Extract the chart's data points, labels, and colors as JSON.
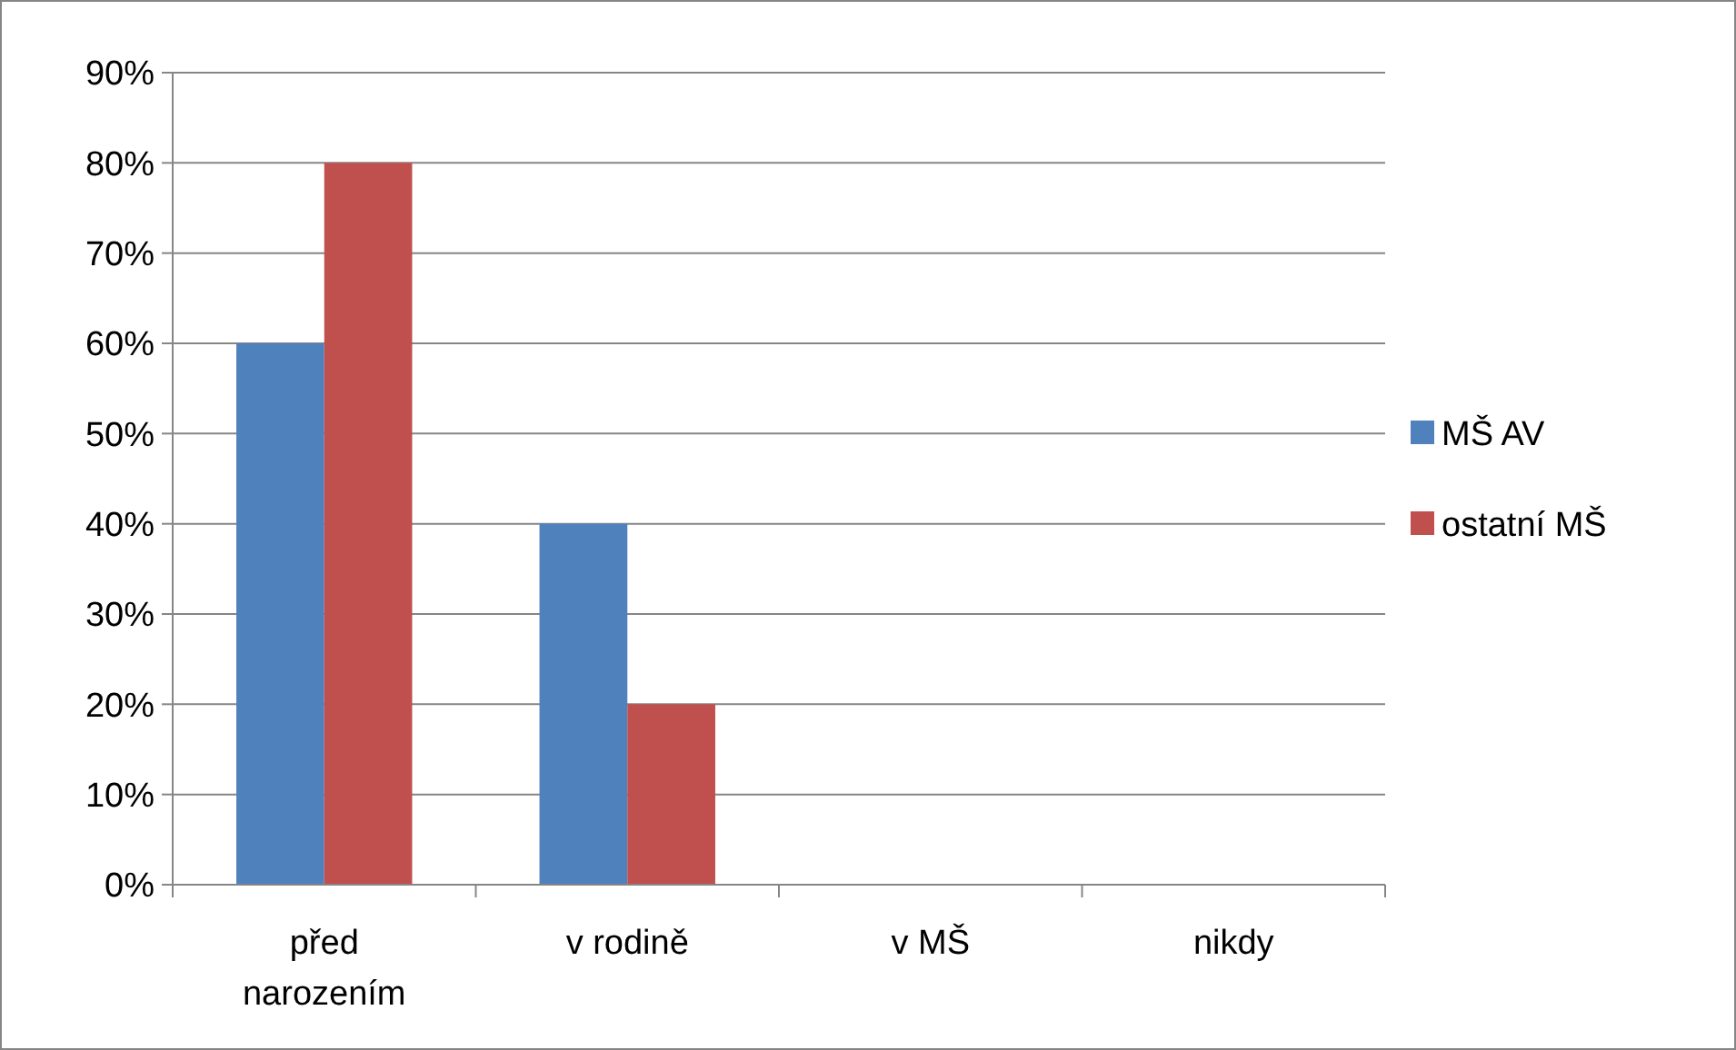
{
  "chart_data": {
    "type": "bar",
    "categories": [
      "před narozením",
      "v rodině",
      "v MŠ",
      "nikdy"
    ],
    "series": [
      {
        "name": "MŠ AV",
        "color": "#4f81bd",
        "values": [
          60,
          40,
          0,
          0
        ]
      },
      {
        "name": "ostatní MŠ",
        "color": "#c0504d",
        "values": [
          80,
          20,
          0,
          0
        ]
      }
    ],
    "ylim": [
      0,
      90
    ],
    "yticks": [
      {
        "value": 0,
        "label": "0%"
      },
      {
        "value": 10,
        "label": "10%"
      },
      {
        "value": 20,
        "label": "20%"
      },
      {
        "value": 30,
        "label": "30%"
      },
      {
        "value": 40,
        "label": "40%"
      },
      {
        "value": 50,
        "label": "50%"
      },
      {
        "value": 60,
        "label": "60%"
      },
      {
        "value": 70,
        "label": "70%"
      },
      {
        "value": 80,
        "label": "80%"
      },
      {
        "value": 90,
        "label": "90%"
      }
    ],
    "grid": "y",
    "legend": "right"
  }
}
